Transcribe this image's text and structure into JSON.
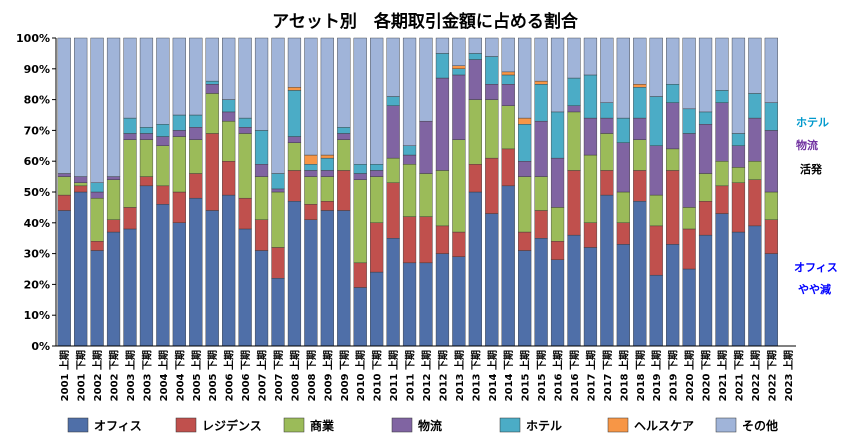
{
  "chart_data": {
    "type": "bar",
    "stacked": true,
    "title": "アセット別　各期取引金額に占める割合",
    "ylim": [
      0,
      100
    ],
    "yticks": [
      "0%",
      "10%",
      "20%",
      "30%",
      "40%",
      "50%",
      "60%",
      "70%",
      "80%",
      "90%",
      "100%"
    ],
    "grid": false,
    "legend_position": "bottom",
    "categories": [
      "2001 上期",
      "2001 下期",
      "2002 上期",
      "2002 下期",
      "2003 上期",
      "2003 下期",
      "2004 上期",
      "2004 下期",
      "2005 上期",
      "2005 下期",
      "2006 上期",
      "2006 下期",
      "2007 上期",
      "2007 下期",
      "2008 上期",
      "2008 下期",
      "2009 上期",
      "2009 下期",
      "2010 上期",
      "2010 下期",
      "2011 上期",
      "2011 下期",
      "2012 上期",
      "2012 下期",
      "2013 上期",
      "2013 下期",
      "2014 上期",
      "2014 下期",
      "2015 上期",
      "2015 下期",
      "2016 上期",
      "2016 下期",
      "2017 上期",
      "2017 下期",
      "2018 上期",
      "2018 下期",
      "2019 上期",
      "2019 下期",
      "2020 上期",
      "2020 下期",
      "2021 上期",
      "2021 下期",
      "2022 上期",
      "2022 下期",
      "2023 上期"
    ],
    "series": [
      {
        "name": "オフィス",
        "color": "#4F6FA8",
        "values": [
          44,
          50,
          31,
          37,
          38,
          52,
          46,
          40,
          48,
          44,
          49,
          38,
          31,
          22,
          47,
          41,
          44,
          44,
          19,
          24,
          35,
          27,
          27,
          30,
          29,
          50,
          43,
          52,
          31,
          35,
          28,
          36,
          32,
          49,
          33,
          47,
          23,
          33,
          25,
          36,
          43,
          37,
          39,
          30,
          0
        ]
      },
      {
        "name": "レジデンス",
        "color": "#C0504D",
        "values": [
          5,
          2,
          3,
          4,
          7,
          3,
          6,
          10,
          8,
          25,
          11,
          10,
          10,
          10,
          10,
          5,
          3,
          13,
          8,
          16,
          18,
          15,
          15,
          9,
          8,
          9,
          18,
          12,
          6,
          9,
          6,
          21,
          8,
          8,
          7,
          10,
          16,
          24,
          13,
          11,
          9,
          16,
          15,
          11,
          0
        ]
      },
      {
        "name": "商業",
        "color": "#9BBB59",
        "values": [
          6,
          1,
          14,
          13,
          22,
          12,
          13,
          18,
          11,
          13,
          13,
          21,
          14,
          18,
          9,
          9,
          8,
          10,
          27,
          15,
          8,
          17,
          14,
          18,
          30,
          21,
          19,
          14,
          18,
          11,
          11,
          19,
          22,
          12,
          10,
          10,
          10,
          7,
          7,
          9,
          8,
          5,
          6,
          9,
          0
        ]
      },
      {
        "name": "物流",
        "color": "#8064A2",
        "values": [
          1,
          2,
          2,
          1,
          2,
          2,
          3,
          2,
          4,
          3,
          3,
          2,
          4,
          1,
          2,
          2,
          2,
          2,
          2,
          2,
          17,
          3,
          17,
          30,
          21,
          13,
          5,
          7,
          5,
          18,
          16,
          2,
          12,
          5,
          16,
          7,
          16,
          15,
          24,
          16,
          19,
          7,
          14,
          20,
          0
        ]
      },
      {
        "name": "ホテル",
        "color": "#4BACC6",
        "values": [
          0,
          0,
          3,
          0,
          5,
          2,
          4,
          5,
          4,
          1,
          4,
          3,
          11,
          5,
          15,
          2,
          4,
          2,
          3,
          2,
          3,
          3,
          0,
          8,
          2,
          2,
          9,
          3,
          12,
          12,
          15,
          9,
          14,
          5,
          8,
          10,
          16,
          6,
          8,
          4,
          4,
          4,
          8,
          9,
          0
        ]
      },
      {
        "name": "ヘルスケア",
        "color": "#F79646",
        "values": [
          0,
          0,
          0,
          0,
          0,
          0,
          0,
          0,
          0,
          0,
          0,
          0,
          0,
          0,
          1,
          3,
          1,
          0,
          0,
          0,
          0,
          0,
          0,
          0,
          1,
          0,
          0,
          1,
          2,
          1,
          0,
          0,
          0,
          0,
          0,
          1,
          0,
          0,
          0,
          0,
          0,
          0,
          0,
          0,
          0
        ]
      },
      {
        "name": "その他",
        "color": "#A0B4D9",
        "values": [
          44,
          45,
          47,
          45,
          26,
          29,
          28,
          25,
          25,
          14,
          20,
          26,
          30,
          44,
          16,
          38,
          38,
          29,
          41,
          41,
          19,
          35,
          27,
          5,
          9,
          5,
          6,
          11,
          26,
          14,
          24,
          13,
          12,
          21,
          26,
          15,
          19,
          15,
          23,
          24,
          17,
          31,
          18,
          21,
          0
        ]
      }
    ],
    "annotations": [
      {
        "text": "ホテル",
        "color": "#0099CC"
      },
      {
        "text": "物流",
        "color": "#7030A0"
      },
      {
        "text": "活発",
        "color": "#000000"
      },
      {
        "text": "オフィス",
        "color": "#0000FF"
      },
      {
        "text": "やや減",
        "color": "#0000FF"
      }
    ]
  }
}
